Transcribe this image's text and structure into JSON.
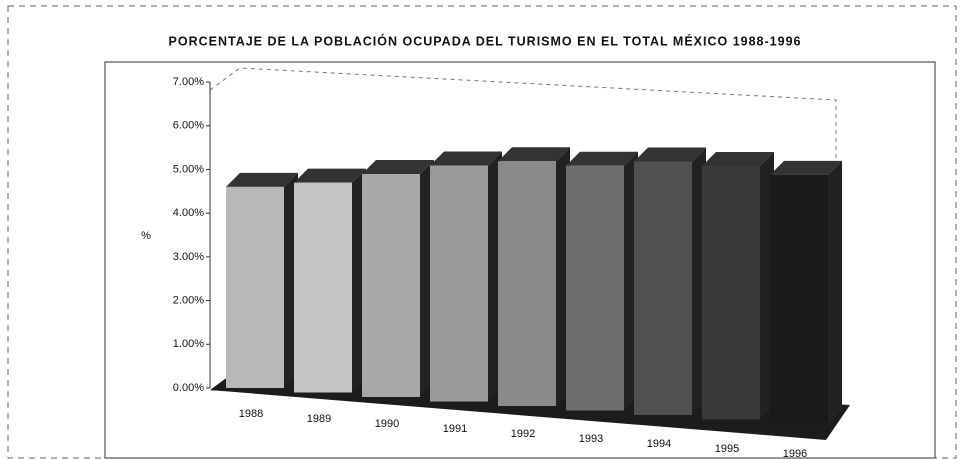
{
  "chart_data": {
    "type": "bar3d",
    "title": "PORCENTAJE DE LA POBLACIÓN OCUPADA DEL TURISMO EN EL TOTAL MÉXICO 1988-1996",
    "y_label": "%",
    "categories": [
      "1988",
      "1989",
      "1990",
      "1991",
      "1992",
      "1993",
      "1994",
      "1995",
      "1996"
    ],
    "values": [
      4.6,
      4.8,
      5.1,
      5.4,
      5.6,
      5.6,
      5.8,
      5.8,
      5.7
    ],
    "colors": [
      "#b8b8b8",
      "#c4c4c4",
      "#a8a8a8",
      "#9a9a9a",
      "#8a8a8a",
      "#6e6e6e",
      "#505050",
      "#3a3a3a",
      "#1a1a1a"
    ],
    "ylim": [
      0,
      7
    ],
    "yticks": [
      {
        "value": 0,
        "label": "0.00%"
      },
      {
        "value": 1,
        "label": "1.00%"
      },
      {
        "value": 2,
        "label": "2.00%"
      },
      {
        "value": 3,
        "label": "3.00%"
      },
      {
        "value": 4,
        "label": "4.00%"
      },
      {
        "value": 5,
        "label": "5.00%"
      },
      {
        "value": 6,
        "label": "6.00%"
      },
      {
        "value": 7,
        "label": "7.00%"
      }
    ]
  }
}
